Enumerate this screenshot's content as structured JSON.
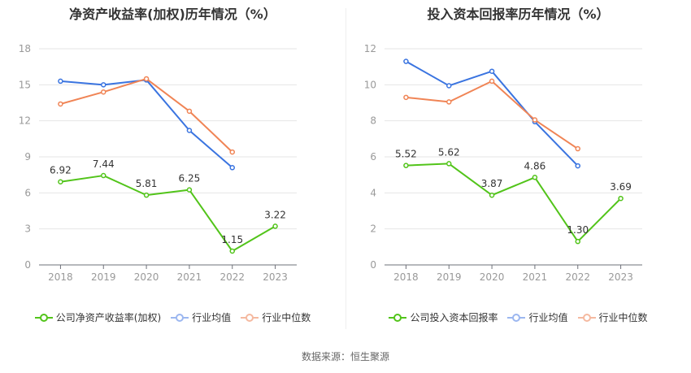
{
  "colors": {
    "company": "#52c41a",
    "industry_avg": "#3a74e0",
    "industry_median": "#f08455"
  },
  "source_text": "数据来源：恒生聚源",
  "chart_data": [
    {
      "type": "line",
      "title": "净资产收益率(加权)历年情况（%）",
      "categories": [
        "2018",
        "2019",
        "2020",
        "2021",
        "2022",
        "2023"
      ],
      "ylim": [
        0,
        18
      ],
      "yticks": [
        0,
        3,
        6,
        9,
        12,
        15,
        18
      ],
      "grid": true,
      "legend_position": "bottom",
      "series": [
        {
          "name": "公司净资产收益率(加权)",
          "color": "#52c41a",
          "values": [
            6.92,
            7.44,
            5.81,
            6.25,
            1.15,
            3.22
          ],
          "labels": [
            "6.92",
            "7.44",
            "5.81",
            "6.25",
            "1.15",
            "3.22"
          ]
        },
        {
          "name": "行业均值",
          "color": "#3a74e0",
          "values": [
            15.3,
            15.0,
            15.4,
            11.2,
            8.1,
            null
          ]
        },
        {
          "name": "行业中位数",
          "color": "#f08455",
          "values": [
            13.4,
            14.4,
            15.5,
            12.8,
            9.4,
            null
          ]
        }
      ]
    },
    {
      "type": "line",
      "title": "投入资本回报率历年情况（%）",
      "categories": [
        "2018",
        "2019",
        "2020",
        "2021",
        "2022",
        "2023"
      ],
      "ylim": [
        0,
        12
      ],
      "yticks": [
        0,
        2,
        4,
        6,
        8,
        10,
        12
      ],
      "grid": true,
      "legend_position": "bottom",
      "series": [
        {
          "name": "公司投入资本回报率",
          "color": "#52c41a",
          "values": [
            5.52,
            5.62,
            3.87,
            4.86,
            1.3,
            3.69
          ],
          "labels": [
            "5.52",
            "5.62",
            "3.87",
            "4.86",
            "1.30",
            "3.69"
          ]
        },
        {
          "name": "行业均值",
          "color": "#3a74e0",
          "values": [
            11.3,
            9.95,
            10.75,
            7.95,
            5.5,
            null
          ]
        },
        {
          "name": "行业中位数",
          "color": "#f08455",
          "values": [
            9.3,
            9.05,
            10.2,
            8.05,
            6.45,
            null
          ]
        }
      ]
    }
  ]
}
